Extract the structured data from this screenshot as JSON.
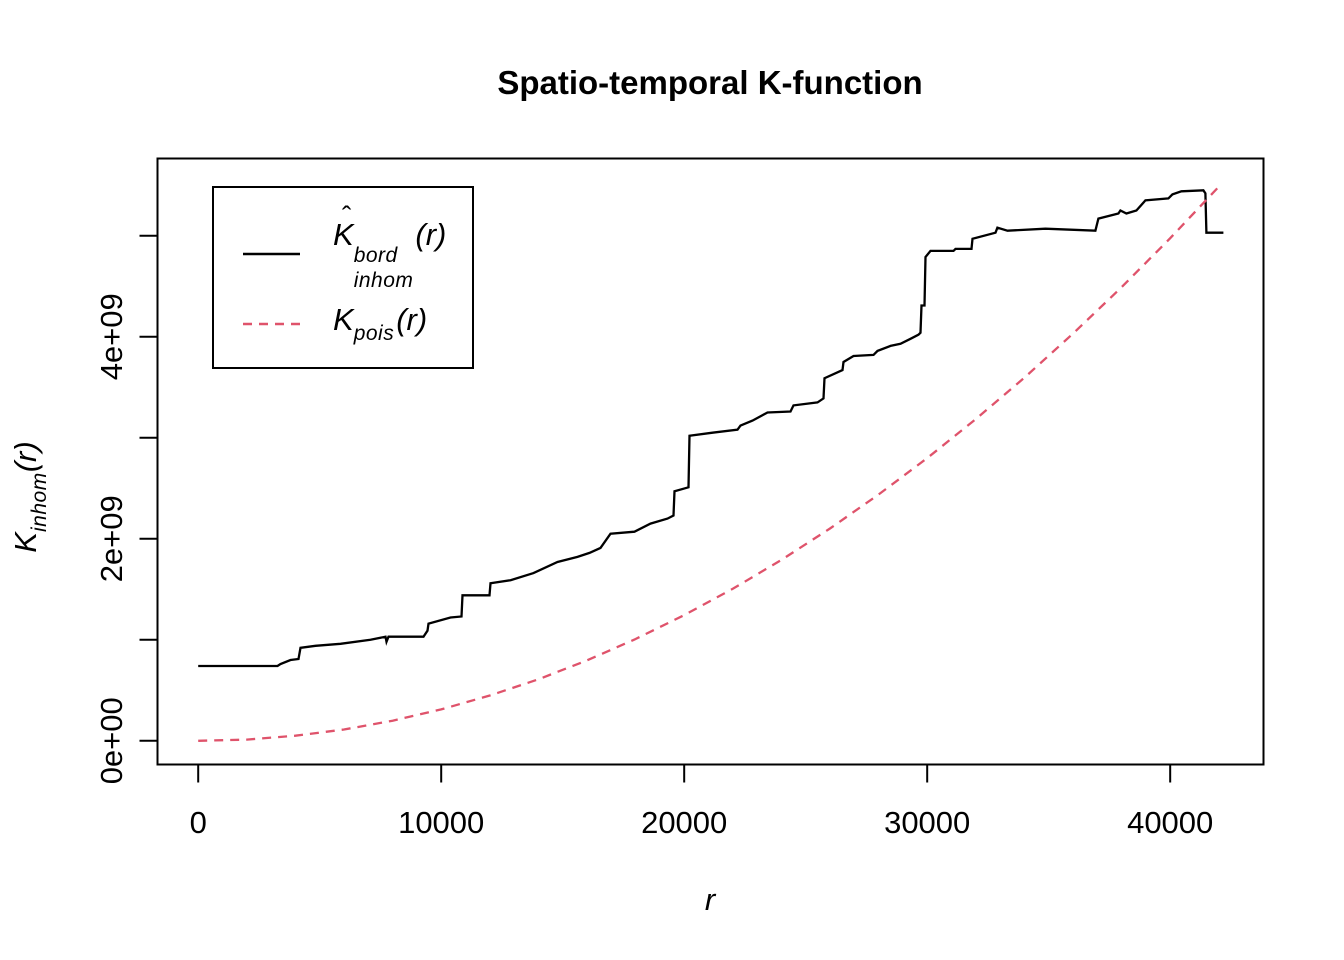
{
  "chart_data": {
    "type": "line",
    "title": "Spatio-temporal K-function",
    "xlabel": "r",
    "ylabel": "K_inhom(r)",
    "ylabel_parts": {
      "main": "K",
      "sub": "inhom",
      "arg": "(r)"
    },
    "xlim": [
      -1675,
      43840
    ],
    "ylim": [
      -235000000,
      5765000000
    ],
    "y_scale": 1000000000,
    "grid": false,
    "legend_position": "top-left",
    "axes": {
      "x": {
        "ticks": [
          {
            "value": 0,
            "label": "0"
          },
          {
            "value": 10000,
            "label": "10000"
          },
          {
            "value": 20000,
            "label": "20000"
          },
          {
            "value": 30000,
            "label": "30000"
          },
          {
            "value": 40000,
            "label": "40000"
          }
        ]
      },
      "y": {
        "ticks": [
          {
            "value": 0,
            "label": "0e+00"
          },
          {
            "value": 1,
            "label": ""
          },
          {
            "value": 2,
            "label": "2e+09"
          },
          {
            "value": 3,
            "label": ""
          },
          {
            "value": 4,
            "label": "4e+09"
          },
          {
            "value": 5,
            "label": ""
          }
        ]
      }
    },
    "series": [
      {
        "name": "Khat_bord_inhom(r)",
        "color": "#000000",
        "style": "solid",
        "points": [
          [
            0,
            0.74
          ],
          [
            3263,
            0.74
          ],
          [
            3386,
            0.76
          ],
          [
            3799,
            0.8
          ],
          [
            4128,
            0.81
          ],
          [
            4210,
            0.92
          ],
          [
            4827,
            0.94
          ],
          [
            5856,
            0.96
          ],
          [
            7090,
            1.0
          ],
          [
            7708,
            1.03
          ],
          [
            7749,
            0.98
          ],
          [
            7831,
            1.03
          ],
          [
            9272,
            1.03
          ],
          [
            9436,
            1.09
          ],
          [
            9477,
            1.16
          ],
          [
            10383,
            1.22
          ],
          [
            10835,
            1.23
          ],
          [
            10876,
            1.44
          ],
          [
            11988,
            1.44
          ],
          [
            12029,
            1.56
          ],
          [
            12852,
            1.59
          ],
          [
            13799,
            1.66
          ],
          [
            14786,
            1.77
          ],
          [
            15609,
            1.82
          ],
          [
            16103,
            1.86
          ],
          [
            16556,
            1.91
          ],
          [
            16967,
            2.05
          ],
          [
            17955,
            2.07
          ],
          [
            18613,
            2.15
          ],
          [
            19313,
            2.2
          ],
          [
            19560,
            2.23
          ],
          [
            19601,
            2.47
          ],
          [
            20177,
            2.51
          ],
          [
            20218,
            3.02
          ],
          [
            21164,
            3.05
          ],
          [
            22193,
            3.08
          ],
          [
            22316,
            3.12
          ],
          [
            22810,
            3.17
          ],
          [
            23427,
            3.25
          ],
          [
            24374,
            3.26
          ],
          [
            24497,
            3.32
          ],
          [
            25485,
            3.35
          ],
          [
            25732,
            3.39
          ],
          [
            25773,
            3.59
          ],
          [
            26513,
            3.67
          ],
          [
            26555,
            3.75
          ],
          [
            26966,
            3.81
          ],
          [
            27789,
            3.82
          ],
          [
            27954,
            3.86
          ],
          [
            28489,
            3.91
          ],
          [
            28900,
            3.93
          ],
          [
            29312,
            3.98
          ],
          [
            29641,
            4.02
          ],
          [
            29723,
            4.04
          ],
          [
            29764,
            4.31
          ],
          [
            29888,
            4.31
          ],
          [
            29929,
            4.79
          ],
          [
            30135,
            4.85
          ],
          [
            31081,
            4.85
          ],
          [
            31163,
            4.87
          ],
          [
            31822,
            4.87
          ],
          [
            31863,
            4.97
          ],
          [
            32809,
            5.03
          ],
          [
            32891,
            5.08
          ],
          [
            33303,
            5.05
          ],
          [
            34866,
            5.07
          ],
          [
            36923,
            5.05
          ],
          [
            37046,
            5.17
          ],
          [
            37869,
            5.22
          ],
          [
            37951,
            5.25
          ],
          [
            38198,
            5.22
          ],
          [
            38610,
            5.25
          ],
          [
            38980,
            5.35
          ],
          [
            39926,
            5.37
          ],
          [
            40091,
            5.41
          ],
          [
            40461,
            5.44
          ],
          [
            41366,
            5.45
          ],
          [
            41448,
            5.42
          ],
          [
            41489,
            5.03
          ],
          [
            42188,
            5.03
          ]
        ]
      },
      {
        "name": "K_pois(r)",
        "color": "#DF536B",
        "style": "dashed",
        "points": [
          [
            0,
            0.0
          ],
          [
            2000,
            0.012
          ],
          [
            4000,
            0.05
          ],
          [
            6000,
            0.112
          ],
          [
            8000,
            0.199
          ],
          [
            10000,
            0.311
          ],
          [
            12000,
            0.448
          ],
          [
            14000,
            0.609
          ],
          [
            16000,
            0.796
          ],
          [
            18000,
            1.008
          ],
          [
            20000,
            1.244
          ],
          [
            22000,
            1.505
          ],
          [
            24000,
            1.791
          ],
          [
            26000,
            2.102
          ],
          [
            28000,
            2.438
          ],
          [
            30000,
            2.799
          ],
          [
            32000,
            3.185
          ],
          [
            34000,
            3.595
          ],
          [
            36000,
            4.031
          ],
          [
            38000,
            4.491
          ],
          [
            40000,
            4.976
          ],
          [
            42000,
            5.486
          ],
          [
            42100,
            5.513
          ]
        ]
      }
    ]
  },
  "legend": {
    "items": [
      {
        "text": "Khat^bord_inhom(r)",
        "color": "#000000",
        "style": "solid",
        "parts": {
          "hat": "ˆ",
          "main": "K",
          "sup": "bord",
          "sub": "inhom",
          "arg": "(r)"
        }
      },
      {
        "text": "K_pois(r)",
        "color": "#DF536B",
        "style": "dashed",
        "parts": {
          "main": "K",
          "sub": "pois",
          "arg": "(r)"
        }
      }
    ]
  }
}
